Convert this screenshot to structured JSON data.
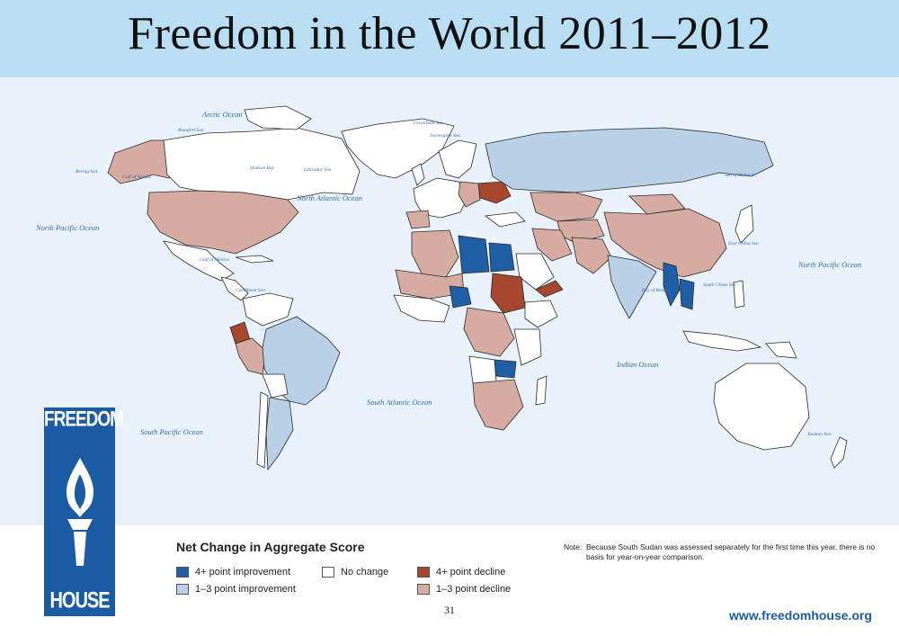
{
  "title": "Freedom in the World 2011–2012",
  "oceans": {
    "arctic": "Arctic Ocean",
    "north_atlantic": "North Atlantic Ocean",
    "south_atlantic": "South Atlantic Ocean",
    "north_pacific_west": "North Pacific Ocean",
    "north_pacific_east": "North Pacific Ocean",
    "south_pacific": "South Pacific Ocean",
    "indian": "Indian Ocean"
  },
  "seas": {
    "beaufort": "Beaufort Sea",
    "bering": "Bering Sea",
    "gulf_of_alaska": "Gulf of Alaska",
    "hudson_bay": "Hudson Bay",
    "labrador": "Labrador Sea",
    "greenland": "Greenland Sea",
    "norwegian": "Norwegian Sea",
    "okhotsk": "Sea of Okhotsk",
    "gulf_of_mexico": "Gulf of Mexico",
    "caribbean": "Caribbean Sea",
    "bay_of_bengal": "Bay of Bengal",
    "south_china": "South China Sea",
    "east_china": "East China Sea",
    "tasman": "Tasman Sea"
  },
  "logo": {
    "top_text": "FREEDOM",
    "bottom_text": "HOUSE"
  },
  "legend": {
    "title": "Net Change in Aggregate Score",
    "items": [
      {
        "label": "4+ point improvement",
        "color": "#1f5fa6"
      },
      {
        "label": "1–3 point improvement",
        "color": "#b9d0e6"
      },
      {
        "label": "No change",
        "color": "#ffffff"
      },
      {
        "label": "4+ point decline",
        "color": "#a5482d"
      },
      {
        "label": "1–3 point decline",
        "color": "#d6aba1"
      }
    ]
  },
  "note": {
    "label": "Note:",
    "text": "Because South Sudan was assessed separately for the first time this year, there is no basis for year-on-year comparison."
  },
  "page_number": "31",
  "website": "www.freedomhouse.org"
}
